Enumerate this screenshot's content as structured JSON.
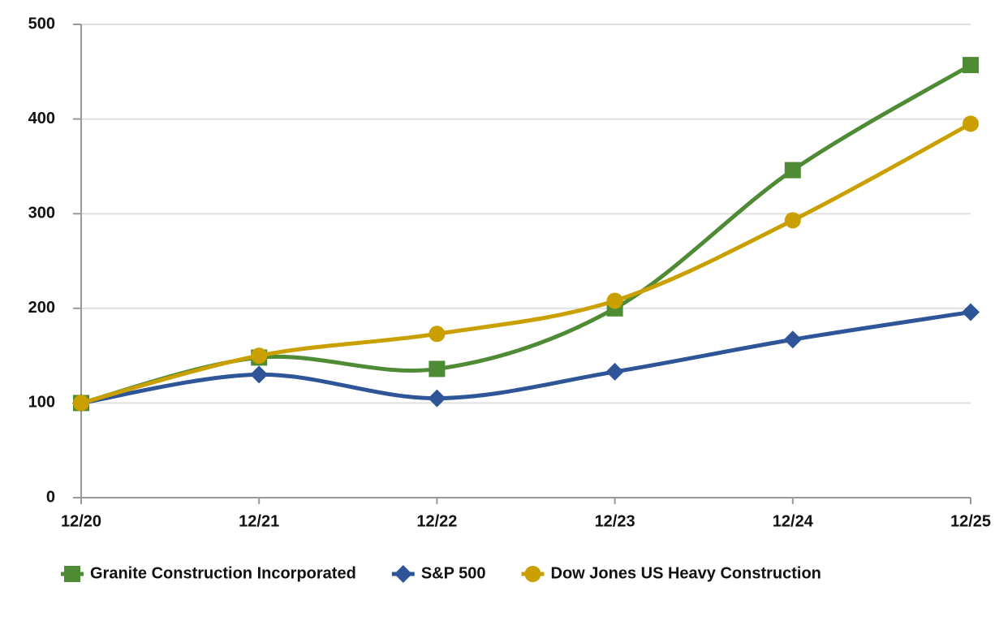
{
  "chart_data": {
    "type": "line",
    "categories": [
      "12/20",
      "12/21",
      "12/22",
      "12/23",
      "12/24",
      "12/25"
    ],
    "series": [
      {
        "name": "Granite Construction Incorporated",
        "color": "#4f8a34",
        "marker": "square",
        "values": [
          100,
          148,
          136,
          200,
          346,
          457
        ]
      },
      {
        "name": "S&P 500",
        "color": "#2e5597",
        "marker": "diamond",
        "values": [
          100,
          130,
          105,
          133,
          167,
          196
        ]
      },
      {
        "name": "Dow Jones US Heavy Construction",
        "color": "#c9a000",
        "marker": "circle",
        "values": [
          100,
          150,
          173,
          208,
          293,
          395
        ]
      }
    ],
    "ylim": [
      0,
      500
    ],
    "yticks": [
      0,
      100,
      200,
      300,
      400,
      500
    ],
    "grid": true,
    "smooth": true,
    "legend": "bottom"
  }
}
